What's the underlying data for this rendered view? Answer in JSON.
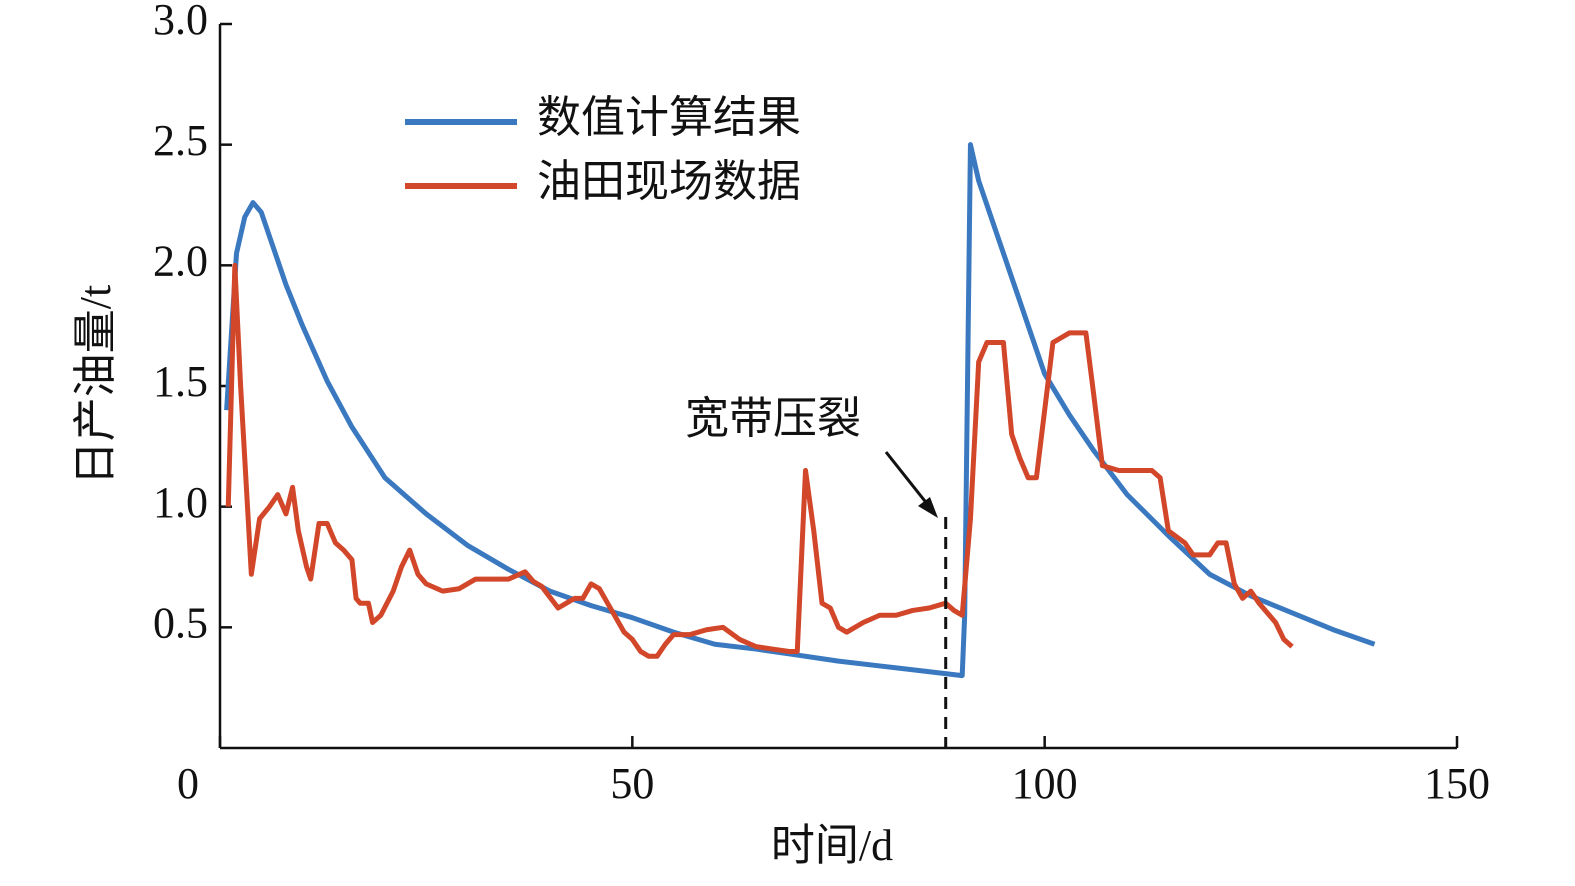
{
  "chart_data": {
    "type": "line",
    "xlabel": "时间/d",
    "ylabel": "日产油量/t",
    "xlim": [
      0,
      150
    ],
    "ylim": [
      0,
      3
    ],
    "xticks": [
      0,
      50,
      100,
      150
    ],
    "yticks": [
      0.5,
      {
        "value": 1,
        "label": "1.0"
      },
      1.5,
      {
        "value": 2,
        "label": "2.0"
      },
      2.5,
      {
        "value": 3,
        "label": "3.0"
      }
    ],
    "legend": "upper left",
    "annotation": {
      "text": "宽带压裂",
      "x": 88
    },
    "series": [
      {
        "name": "数值计算结果",
        "color": "#3a78c0",
        "x": [
          0.8,
          2,
          3,
          4,
          5,
          6,
          8,
          10,
          13,
          16,
          20,
          25,
          30,
          35,
          40,
          45,
          50,
          55,
          60,
          65,
          70,
          75,
          80,
          85,
          90,
          90.3,
          91,
          92,
          94,
          96,
          98,
          100,
          103,
          106,
          110,
          115,
          120,
          125,
          130,
          135,
          140
        ],
        "values": [
          1.4,
          2.05,
          2.2,
          2.26,
          2.22,
          2.12,
          1.92,
          1.75,
          1.52,
          1.33,
          1.12,
          0.97,
          0.84,
          0.74,
          0.65,
          0.59,
          0.54,
          0.48,
          0.43,
          0.41,
          0.385,
          0.36,
          0.34,
          0.32,
          0.3,
          0.55,
          2.5,
          2.35,
          2.15,
          1.95,
          1.75,
          1.55,
          1.38,
          1.23,
          1.05,
          0.88,
          0.72,
          0.63,
          0.56,
          0.49,
          0.43
        ]
      },
      {
        "name": "油田现场数据",
        "color": "#d2462a",
        "x": [
          1,
          1.8,
          2.5,
          3.8,
          4.8,
          6,
          7,
          8,
          8.8,
          9.5,
          10.5,
          11,
          12,
          13,
          14,
          15,
          16,
          16.5,
          17,
          18,
          18.5,
          19.5,
          21,
          22,
          23,
          24,
          25,
          27,
          29,
          31,
          33,
          35,
          37,
          38,
          39,
          41,
          42,
          43,
          44,
          45,
          46,
          47,
          49,
          50,
          51,
          52,
          53,
          54,
          55,
          57,
          59,
          61,
          63,
          65,
          67,
          69,
          70,
          71,
          72,
          73,
          74,
          75,
          76,
          78,
          80,
          82,
          84,
          86,
          88,
          89,
          90,
          91,
          92,
          93,
          95,
          96,
          97,
          98,
          99,
          100,
          101,
          102,
          103,
          104,
          105,
          106,
          107,
          109,
          111,
          113,
          114,
          115,
          117,
          118,
          120,
          121,
          122,
          123,
          124,
          125,
          126,
          128,
          129,
          130
        ],
        "values": [
          1.0,
          2.0,
          1.5,
          0.72,
          0.95,
          1.0,
          1.05,
          0.97,
          1.08,
          0.9,
          0.75,
          0.7,
          0.93,
          0.93,
          0.85,
          0.82,
          0.78,
          0.62,
          0.6,
          0.6,
          0.52,
          0.55,
          0.65,
          0.75,
          0.82,
          0.72,
          0.68,
          0.65,
          0.66,
          0.7,
          0.7,
          0.7,
          0.73,
          0.69,
          0.67,
          0.58,
          0.6,
          0.62,
          0.62,
          0.68,
          0.66,
          0.6,
          0.48,
          0.45,
          0.4,
          0.38,
          0.38,
          0.43,
          0.47,
          0.47,
          0.49,
          0.5,
          0.45,
          0.42,
          0.41,
          0.4,
          0.4,
          1.15,
          0.9,
          0.6,
          0.58,
          0.5,
          0.48,
          0.52,
          0.55,
          0.55,
          0.57,
          0.58,
          0.6,
          0.57,
          0.55,
          0.95,
          1.6,
          1.68,
          1.68,
          1.3,
          1.2,
          1.12,
          1.12,
          1.4,
          1.68,
          1.7,
          1.72,
          1.72,
          1.72,
          1.45,
          1.17,
          1.15,
          1.15,
          1.15,
          1.12,
          0.9,
          0.85,
          0.8,
          0.8,
          0.85,
          0.85,
          0.68,
          0.62,
          0.65,
          0.6,
          0.52,
          0.45,
          0.42
        ]
      }
    ]
  }
}
